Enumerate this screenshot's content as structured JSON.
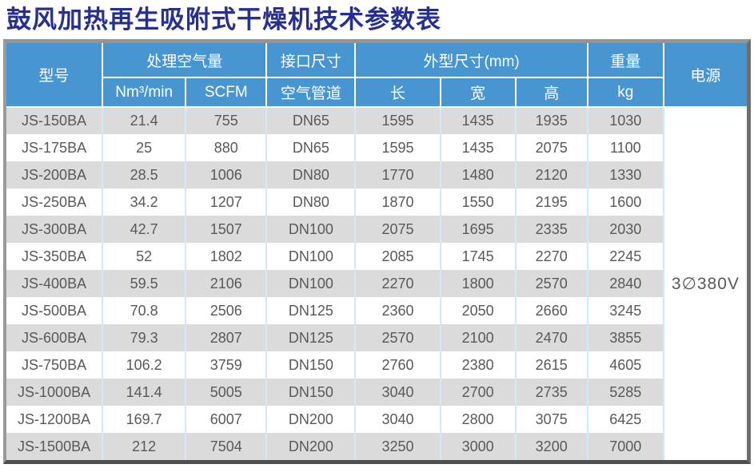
{
  "title": "鼓风加热再生吸附式干燥机技术参数表",
  "table": {
    "headers": {
      "model": "型号",
      "air_volume_group": "处理空气量",
      "nm3_unit": "Nm³/min",
      "scfm_unit": "SCFM",
      "interface_group": "接口尺寸",
      "air_pipe": "空气管道",
      "dimensions_group": "外型尺寸(mm)",
      "length": "长",
      "width": "宽",
      "height": "高",
      "weight_group": "重量",
      "kg_unit": "kg",
      "power": "电源"
    },
    "power_value": "3∅380V",
    "rows": [
      {
        "model": "JS-150BA",
        "nm3": "21.4",
        "scfm": "755",
        "pipe": "DN65",
        "length": "1595",
        "width": "1435",
        "height": "1935",
        "kg": "1030"
      },
      {
        "model": "JS-175BA",
        "nm3": "25",
        "scfm": "880",
        "pipe": "DN65",
        "length": "1595",
        "width": "1435",
        "height": "2075",
        "kg": "1100"
      },
      {
        "model": "JS-200BA",
        "nm3": "28.5",
        "scfm": "1006",
        "pipe": "DN80",
        "length": "1770",
        "width": "1480",
        "height": "2120",
        "kg": "1330"
      },
      {
        "model": "JS-250BA",
        "nm3": "34.2",
        "scfm": "1207",
        "pipe": "DN80",
        "length": "1870",
        "width": "1550",
        "height": "2195",
        "kg": "1600"
      },
      {
        "model": "JS-300BA",
        "nm3": "42.7",
        "scfm": "1507",
        "pipe": "DN100",
        "length": "2075",
        "width": "1695",
        "height": "2335",
        "kg": "2030"
      },
      {
        "model": "JS-350BA",
        "nm3": "52",
        "scfm": "1802",
        "pipe": "DN100",
        "length": "2085",
        "width": "1745",
        "height": "2270",
        "kg": "2245"
      },
      {
        "model": "JS-400BA",
        "nm3": "59.5",
        "scfm": "2106",
        "pipe": "DN100",
        "length": "2270",
        "width": "1800",
        "height": "2570",
        "kg": "2840"
      },
      {
        "model": "JS-500BA",
        "nm3": "70.8",
        "scfm": "2506",
        "pipe": "DN125",
        "length": "2360",
        "width": "2050",
        "height": "2660",
        "kg": "3245"
      },
      {
        "model": "JS-600BA",
        "nm3": "79.3",
        "scfm": "2807",
        "pipe": "DN125",
        "length": "2570",
        "width": "2100",
        "height": "2470",
        "kg": "3855"
      },
      {
        "model": "JS-750BA",
        "nm3": "106.2",
        "scfm": "3759",
        "pipe": "DN150",
        "length": "2760",
        "width": "2380",
        "height": "2615",
        "kg": "4605"
      },
      {
        "model": "JS-1000BA",
        "nm3": "141.4",
        "scfm": "5005",
        "pipe": "DN150",
        "length": "3040",
        "width": "2700",
        "height": "2735",
        "kg": "5285"
      },
      {
        "model": "JS-1200BA",
        "nm3": "169.7",
        "scfm": "6007",
        "pipe": "DN200",
        "length": "3040",
        "width": "2800",
        "height": "3075",
        "kg": "6425"
      },
      {
        "model": "JS-1500BA",
        "nm3": "212",
        "scfm": "7504",
        "pipe": "DN200",
        "length": "3250",
        "width": "3000",
        "height": "3200",
        "kg": "7000"
      }
    ]
  },
  "colors": {
    "title_text": "#262f92",
    "header_bg": "#4796d2",
    "header_text": "#ffffff",
    "row_stripe": "#dbdbdb",
    "column_separator": "#d2eaf6",
    "body_text": "#595959",
    "frame_border": "#8f8f8f"
  }
}
